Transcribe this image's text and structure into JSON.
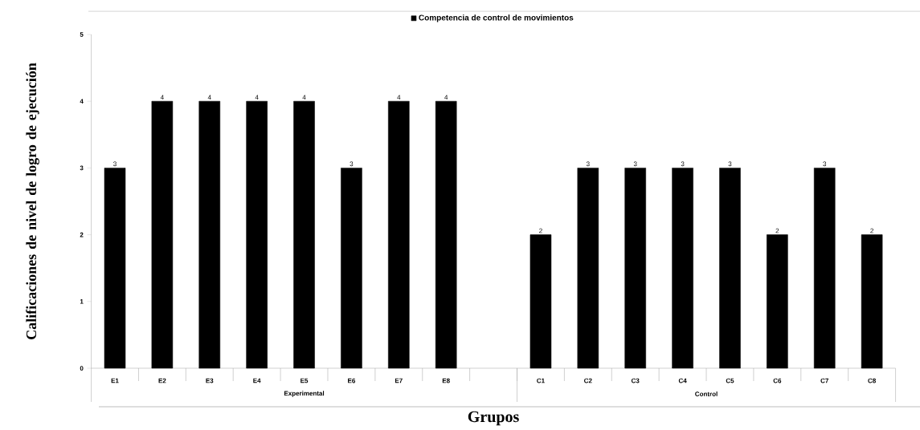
{
  "chart_data": {
    "type": "bar",
    "xlabel": "Grupos",
    "ylabel": "Calificaciones de nivel de logro de ejecución",
    "categories": [
      "E1",
      "E2",
      "E3",
      "E4",
      "E5",
      "E6",
      "E7",
      "E8",
      null,
      "C1",
      "C2",
      "C3",
      "C4",
      "C5",
      "C6",
      "C7",
      "C8"
    ],
    "series": [
      {
        "name": "Competencia de control de movimientos",
        "color": "#000000",
        "values": [
          3,
          4,
          4,
          4,
          4,
          3,
          4,
          4,
          null,
          2,
          3,
          3,
          3,
          3,
          2,
          3,
          2
        ]
      }
    ],
    "ylim": [
      0,
      5
    ],
    "yticks": [
      0,
      1,
      2,
      3,
      4,
      5
    ],
    "grid": false,
    "legend": "top",
    "data_labels": true,
    "annotations": [
      "Experimental",
      "Control"
    ]
  }
}
